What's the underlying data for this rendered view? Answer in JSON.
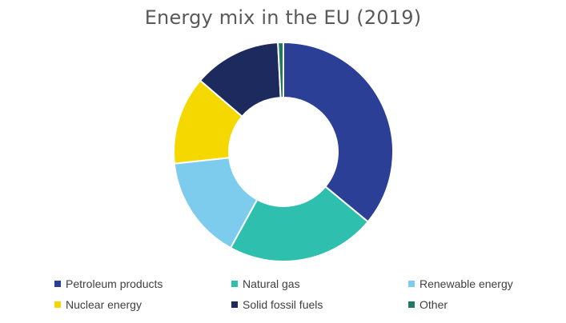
{
  "chart_data": {
    "type": "pie",
    "title": "Energy mix in the EU (2019)",
    "donut": true,
    "categories": [
      "Petroleum products",
      "Natural gas",
      "Renewable energy",
      "Nuclear energy",
      "Solid fossil fuels",
      "Other"
    ],
    "values": [
      36.0,
      22.0,
      15.3,
      13.0,
      12.9,
      0.8
    ],
    "colors": [
      "#2b3f97",
      "#2fbfae",
      "#7dccee",
      "#f4d800",
      "#1c2a5e",
      "#1f7a63"
    ],
    "legend_position": "bottom"
  }
}
